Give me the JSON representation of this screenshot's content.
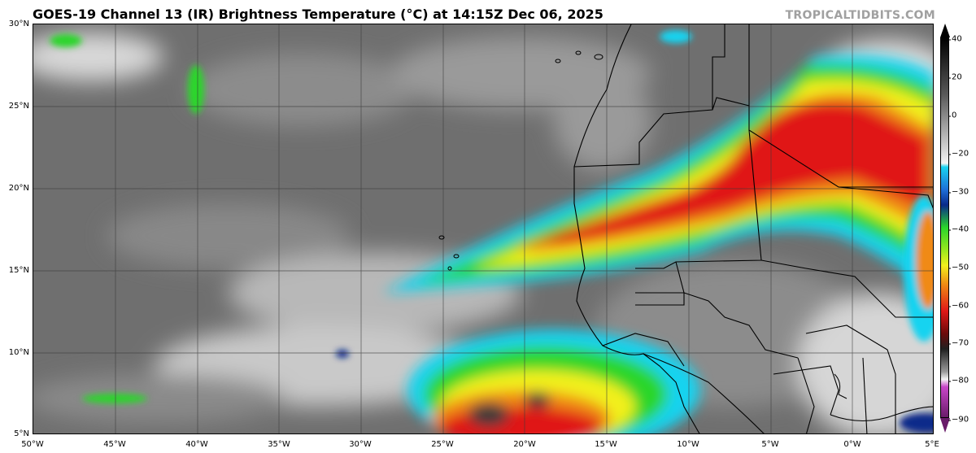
{
  "header": {
    "title": "GOES-19 Channel 13 (IR) Brightness Temperature (°C) at 14:15Z Dec 06, 2025",
    "credit": "TROPICALTIDBITS.COM"
  },
  "map": {
    "region": "Eastern tropical Atlantic and West Africa",
    "lon_range": [
      -50,
      5
    ],
    "lat_range": [
      5,
      30
    ],
    "lat_labels": [
      "30°N",
      "25°N",
      "20°N",
      "15°N",
      "10°N",
      "5°N"
    ],
    "lon_labels": [
      "50°W",
      "45°W",
      "40°W",
      "35°W",
      "30°W",
      "25°W",
      "20°W",
      "15°W",
      "10°W",
      "5°W",
      "0°W",
      "5°E"
    ]
  },
  "colorbar": {
    "ticks": [
      "40",
      "20",
      "0",
      "−20",
      "−30",
      "−40",
      "−50",
      "−60",
      "−70",
      "−80",
      "−90"
    ],
    "unit": "°C",
    "colors": {
      "warm_black": "#000000",
      "warm_white": "#f4f4f4",
      "cyan": "#19d3f0",
      "blue": "#0a2a8a",
      "green": "#2bd62b",
      "yellow": "#f2f01c",
      "orange": "#f08a14",
      "red": "#e01818",
      "dark_red": "#6a0a0a",
      "gray": "#9a9a9a",
      "magenta": "#c846c8"
    }
  }
}
